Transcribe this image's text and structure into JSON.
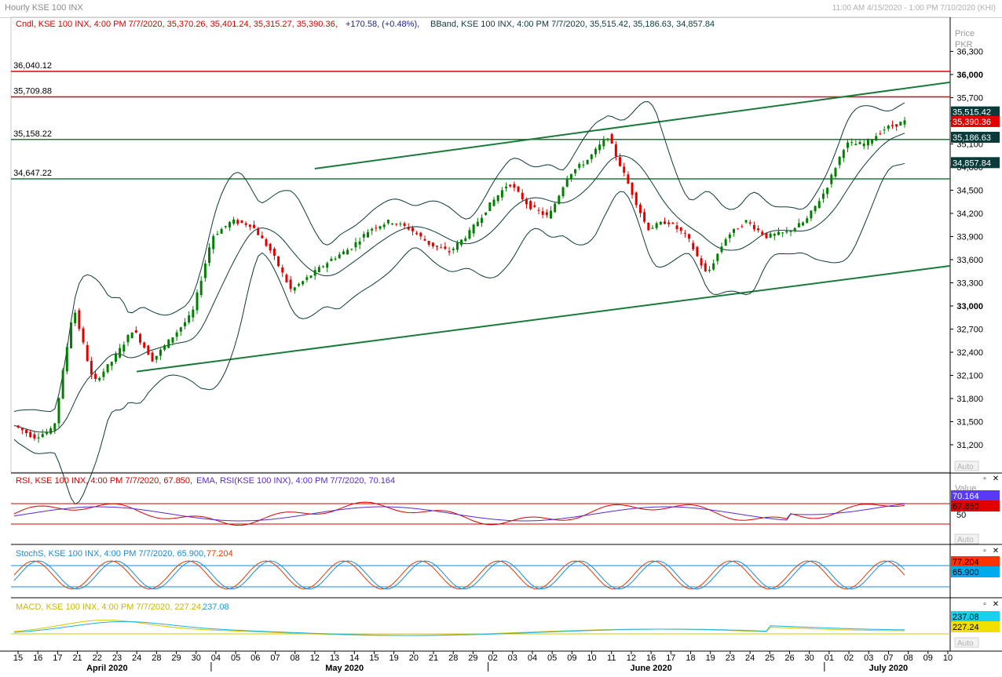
{
  "window": {
    "title": "Hourly KSE 100 INX",
    "range": "11:00 AM 4/15/2020 - 1:00 PM 7/10/2020 (KHI)"
  },
  "main_panel": {
    "candle_legend": "Cndl, KSE 100 INX, 4:00 PM 7/7/2020, 35,370.26, 35,401.24, 35,315.27, 35,390.36,",
    "change_text": "+170.58, (+0.48%),",
    "bband_legend": "BBand, KSE 100 INX, 4:00 PM 7/7/2020, 35,515.42, 35,186.63, 34,857.84",
    "axis_title_line1": "Price",
    "axis_title_line2": "PKR",
    "auto_label": "Auto",
    "y_ticks": [
      "36,300",
      "36,000",
      "35,700",
      "35,400",
      "35,100",
      "34,800",
      "34,500",
      "34,200",
      "33,900",
      "33,600",
      "33,300",
      "33,000",
      "32,700",
      "32,400",
      "32,100",
      "31,800",
      "31,500",
      "31,200"
    ],
    "left_levels": [
      "36,040.12",
      "35,709.88",
      "35,158.22",
      "34,647.22"
    ],
    "value_tags": {
      "bb_upper": "35,515.42",
      "close": "35,390.36",
      "bb_mid": "35,186.63",
      "bb_lower": "34,857.84"
    }
  },
  "rsi_panel": {
    "legend_rsi": "RSI, KSE 100 INX, 4:00 PM 7/7/2020, 67.850,",
    "legend_ema": "EMA, RSI(KSE 100 INX), 4:00 PM 7/7/2020, 70.164",
    "axis_title": "Value",
    "tick_50": "50",
    "tag_ema": "70.164",
    "tag_rsi": "67.850",
    "auto_label": "Auto"
  },
  "stoch_panel": {
    "legend_name": "StochS, KSE 100 INX, 4:00 PM 7/7/2020, 65.900,",
    "legend_value2": "77.204",
    "tag_d": "77.204",
    "tag_k": "65.900"
  },
  "macd_panel": {
    "legend_name": "MACD, KSE 100 INX, 4:00 PM 7/7/2020, 227.24,",
    "legend_value2": "237.08",
    "tag_signal": "237.08",
    "tag_macd": "227.24",
    "auto_label": "Auto"
  },
  "x_axis": {
    "day_labels": [
      "15",
      "16",
      "17",
      "21",
      "22",
      "23",
      "24",
      "28",
      "29",
      "30",
      "04",
      "05",
      "06",
      "07",
      "08",
      "12",
      "13",
      "14",
      "15",
      "19",
      "20",
      "21",
      "28",
      "29",
      "02",
      "03",
      "04",
      "05",
      "09",
      "10",
      "11",
      "12",
      "16",
      "17",
      "18",
      "19",
      "23",
      "24",
      "25",
      "26",
      "30",
      "01",
      "02",
      "03",
      "07",
      "08",
      "09",
      "10"
    ],
    "months": [
      "April 2020",
      "May 2020",
      "June 2020",
      "July 2020"
    ]
  },
  "chart_data": {
    "type": "candlestick",
    "title": "Hourly KSE 100 INX",
    "ylabel": "Price PKR",
    "ylim": [
      31000,
      36350
    ],
    "price_scale": "linear",
    "horizontal_levels": [
      36040.12,
      35709.88,
      35158.22,
      34647.22
    ],
    "trendlines": [
      {
        "from": {
          "date": "4/24/2020",
          "price": 32150
        },
        "to": {
          "date": "7/10/2020",
          "price": 33520
        }
      },
      {
        "from": {
          "date": "5/12/2020",
          "price": 34780
        },
        "to": {
          "date": "7/10/2020",
          "price": 35900
        }
      }
    ],
    "series": [
      {
        "name": "KSE 100 INX",
        "values_close": [
          31450,
          31300,
          31400,
          33000,
          32000,
          32300,
          32700,
          32300,
          32600,
          32900,
          33900,
          34100,
          34050,
          33700,
          33200,
          33400,
          33600,
          33750,
          34000,
          34100,
          34000,
          33800,
          33700,
          33950,
          34300,
          34600,
          34300,
          34150,
          34700,
          34900,
          35200,
          34600,
          34000,
          34100,
          33900,
          33400,
          33900,
          34100,
          33900,
          33950,
          34100,
          34500,
          35100,
          35100,
          35300,
          35390
        ]
      },
      {
        "name": "BBand upper",
        "last": 35515.42
      },
      {
        "name": "BBand middle",
        "last": 35186.63
      },
      {
        "name": "BBand lower",
        "last": 34857.84
      }
    ],
    "indicators": {
      "rsi": {
        "last": 67.85,
        "ema_last": 70.164,
        "levels": [
          30,
          70
        ]
      },
      "stochastic": {
        "k_last": 65.9,
        "d_last": 77.204
      },
      "macd": {
        "macd_last": 227.24,
        "signal_last": 237.08
      }
    },
    "colors": {
      "up": "#008000",
      "down": "#e00000",
      "bband": "#0b3a3a",
      "level": "#e00000",
      "trend": "#1a7a3a"
    }
  }
}
